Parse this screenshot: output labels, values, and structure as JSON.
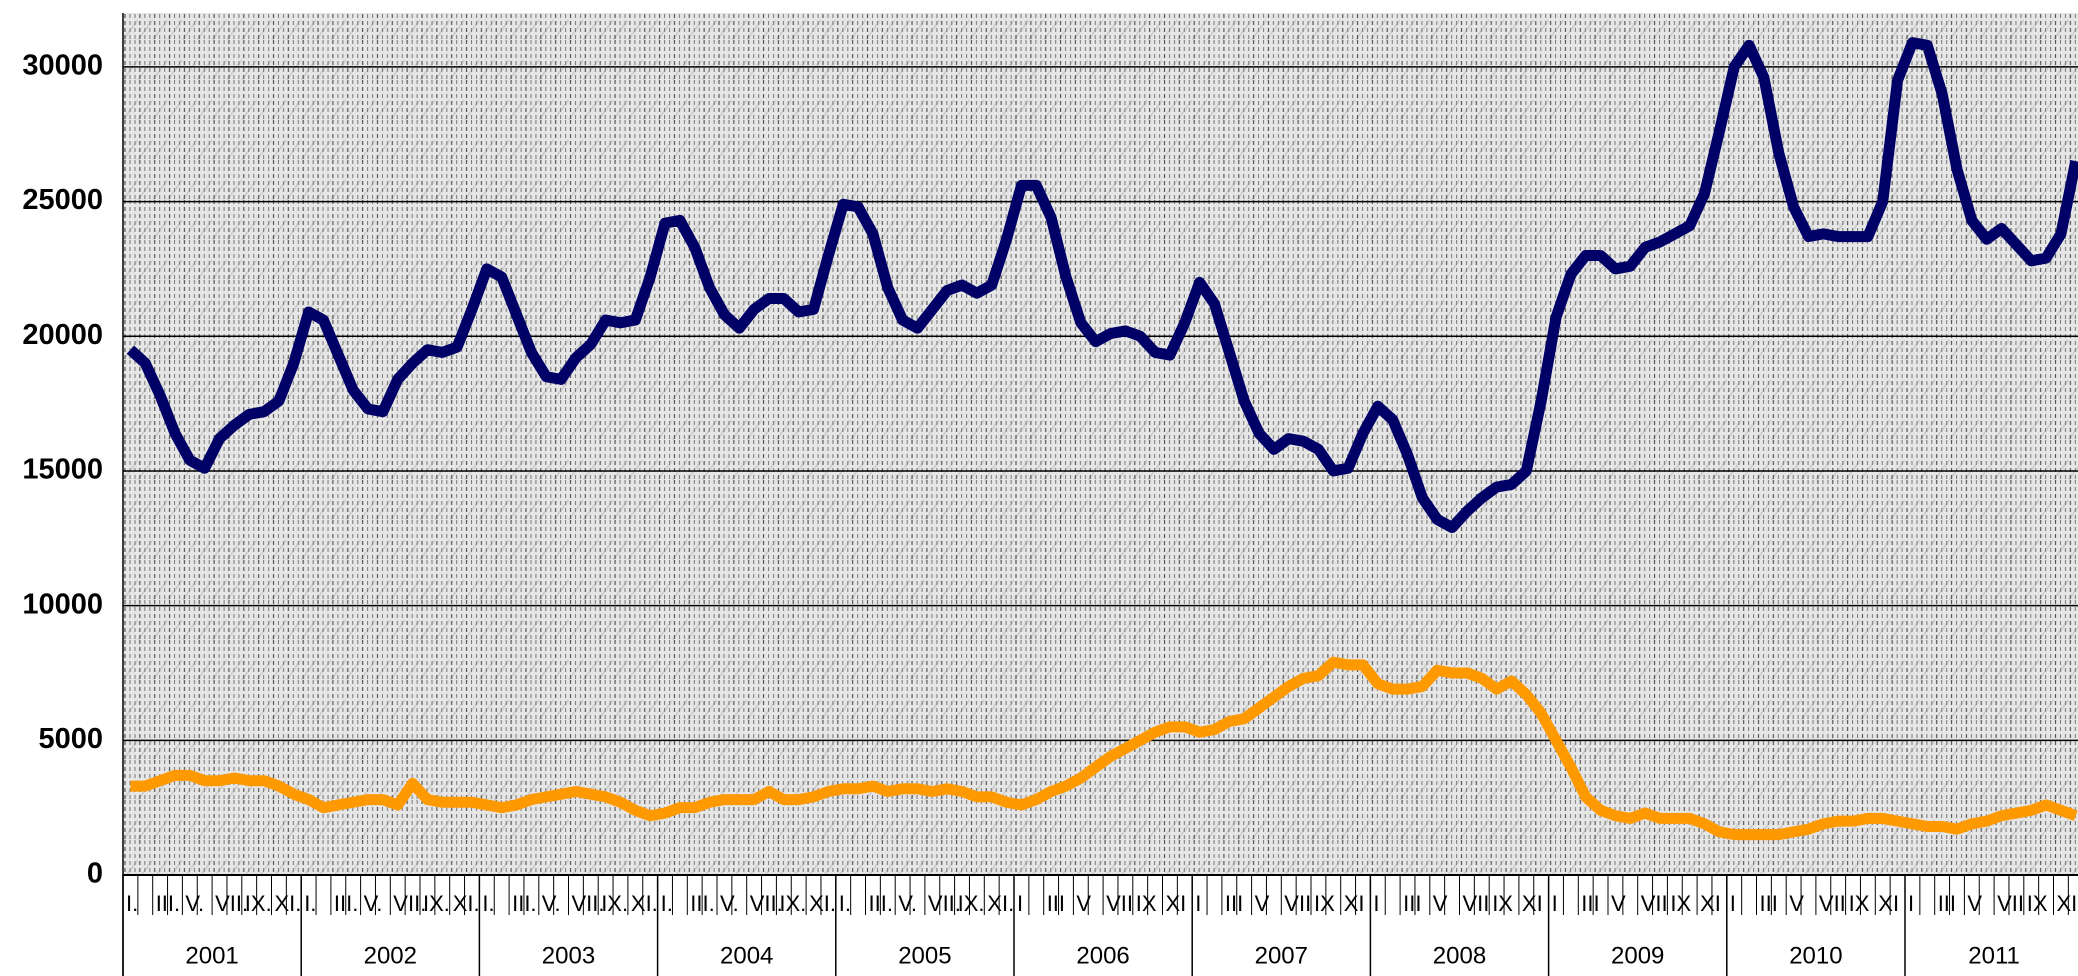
{
  "chart_data": {
    "type": "line",
    "categories": [
      "I.",
      null,
      "III.",
      null,
      "V.",
      null,
      "VII.",
      null,
      "IX.",
      null,
      "XI.",
      null,
      "I.",
      null,
      "III.",
      null,
      "V.",
      null,
      "VII.",
      null,
      "IX.",
      null,
      "XI.",
      null,
      "I.",
      null,
      "III.",
      null,
      "V.",
      null,
      "VII.",
      null,
      "IX.",
      null,
      "XI.",
      null,
      "I.",
      null,
      "III.",
      null,
      "V.",
      null,
      "VII.",
      null,
      "IX.",
      null,
      "XI.",
      null,
      "I.",
      null,
      "III.",
      null,
      "V.",
      null,
      "VII.",
      null,
      "IX.",
      null,
      "XI.",
      null,
      "I",
      null,
      "III",
      null,
      "V",
      null,
      "VII",
      null,
      "IX",
      null,
      "XI",
      null,
      "I",
      null,
      "III",
      null,
      "V",
      null,
      "VII",
      null,
      "IX",
      null,
      "XI",
      null,
      "I",
      null,
      "III",
      null,
      "V",
      null,
      "VII",
      null,
      "IX",
      null,
      "XI",
      null,
      "I",
      null,
      "III",
      null,
      "V",
      null,
      "VII",
      null,
      "IX",
      null,
      "XI",
      null,
      "I",
      null,
      "III",
      null,
      "V",
      null,
      "VII",
      null,
      "IX",
      null,
      "XI",
      null,
      "I",
      null,
      "III",
      null,
      "V",
      null,
      "VII",
      null,
      "IX",
      null,
      "XI",
      null
    ],
    "year_labels": [
      "2001",
      "2002",
      "2003",
      "2004",
      "2005",
      "2006",
      "2007",
      "2008",
      "2009",
      "2010",
      "2011"
    ],
    "series": [
      {
        "color": "#000066",
        "values": [
          19500,
          19000,
          17800,
          16400,
          15400,
          15100,
          16200,
          16700,
          17100,
          17200,
          17600,
          19000,
          20900,
          20600,
          19300,
          18000,
          17300,
          17200,
          18400,
          19000,
          19500,
          19400,
          19600,
          21000,
          22500,
          22200,
          20800,
          19400,
          18500,
          18400,
          19200,
          19700,
          20600,
          20500,
          20600,
          22200,
          24200,
          24300,
          23300,
          21800,
          20800,
          20300,
          21000,
          21400,
          21400,
          20900,
          21000,
          23000,
          24900,
          24800,
          23800,
          21800,
          20600,
          20300,
          21000,
          21700,
          21900,
          21600,
          21900,
          23600,
          25600,
          25600,
          24400,
          22200,
          20500,
          19800,
          20100,
          20200,
          20000,
          19400,
          19300,
          20500,
          22000,
          21200,
          19400,
          17600,
          16400,
          15800,
          16200,
          16100,
          15800,
          15000,
          15100,
          16400,
          17400,
          16900,
          15600,
          14000,
          13200,
          12900,
          13500,
          14000,
          14400,
          14500,
          15000,
          17600,
          20700,
          22300,
          23000,
          23000,
          22500,
          22600,
          23300,
          23500,
          23800,
          24100,
          25300,
          27600,
          30000,
          30800,
          29600,
          26800,
          24800,
          23700,
          23800,
          23700,
          23700,
          23700,
          25000,
          29500,
          30900,
          30800,
          29000,
          26200,
          24300,
          23600,
          24000,
          23400,
          22800,
          22900,
          23800,
          26500
        ]
      },
      {
        "color": "#ff9900",
        "values": [
          3300,
          3300,
          3500,
          3700,
          3700,
          3500,
          3500,
          3600,
          3500,
          3500,
          3300,
          3000,
          2800,
          2500,
          2600,
          2700,
          2800,
          2800,
          2600,
          3400,
          2800,
          2700,
          2700,
          2700,
          2600,
          2500,
          2600,
          2800,
          2900,
          3000,
          3100,
          3000,
          2900,
          2700,
          2400,
          2200,
          2300,
          2500,
          2500,
          2700,
          2800,
          2800,
          2800,
          3100,
          2800,
          2800,
          2900,
          3100,
          3200,
          3200,
          3300,
          3100,
          3200,
          3200,
          3100,
          3200,
          3100,
          2900,
          2900,
          2700,
          2600,
          2800,
          3100,
          3300,
          3600,
          4000,
          4400,
          4700,
          5000,
          5300,
          5500,
          5500,
          5300,
          5400,
          5700,
          5800,
          6200,
          6600,
          7000,
          7300,
          7400,
          7900,
          7800,
          7800,
          7100,
          6900,
          6900,
          7000,
          7600,
          7500,
          7500,
          7300,
          6900,
          7200,
          6700,
          6000,
          5000,
          4000,
          2900,
          2400,
          2200,
          2100,
          2300,
          2100,
          2100,
          2100,
          1900,
          1600,
          1500,
          1500,
          1500,
          1500,
          1600,
          1700,
          1900,
          2000,
          2000,
          2100,
          2100,
          2000,
          1900,
          1800,
          1800,
          1700,
          1900,
          2000,
          2200,
          2300,
          2400,
          2600,
          2400,
          2200
        ]
      }
    ],
    "ylim": [
      0,
      32000
    ],
    "yticks": [
      0,
      5000,
      10000,
      15000,
      20000,
      25000,
      30000
    ],
    "grid": true
  }
}
